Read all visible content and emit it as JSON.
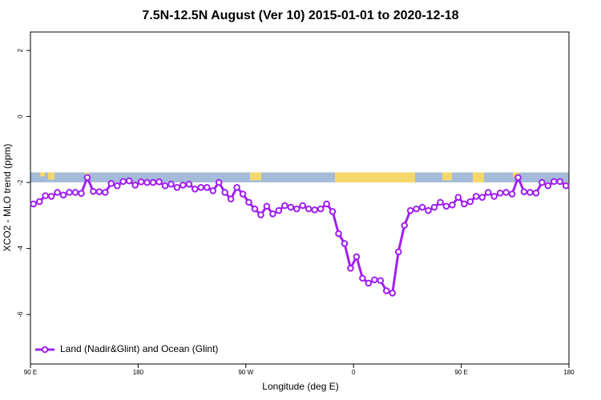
{
  "chart_data": {
    "type": "line",
    "title": "7.5N-12.5N August (Ver 10)   2015-01-01 to 2020-12-18",
    "x_label": "Longitude (deg E)",
    "y_label": "XCO2 - MLO trend (ppm)",
    "x": [
      92.5,
      97.5,
      102.5,
      107.5,
      112.5,
      117.5,
      122.5,
      127.5,
      132.5,
      137.5,
      142.5,
      147.5,
      152.5,
      157.5,
      162.5,
      167.5,
      172.5,
      177.5,
      182.5,
      187.5,
      192.5,
      197.5,
      202.5,
      207.5,
      212.5,
      217.5,
      222.5,
      227.5,
      232.5,
      237.5,
      242.5,
      247.5,
      252.5,
      257.5,
      262.5,
      267.5,
      272.5,
      277.5,
      282.5,
      287.5,
      292.5,
      297.5,
      302.5,
      307.5,
      312.5,
      317.5,
      322.5,
      327.5,
      332.5,
      337.5,
      342.5,
      347.5,
      352.5,
      357.5,
      362.5,
      367.5,
      372.5,
      377.5,
      382.5,
      387.5,
      392.5,
      397.5,
      402.5,
      407.5,
      412.5,
      417.5,
      422.5,
      427.5,
      432.5,
      437.5,
      442.5,
      447.5,
      452.5,
      457.5,
      462.5,
      467.5,
      472.5,
      477.5,
      482.5,
      487.5,
      492.5,
      497.5,
      502.5,
      507.5,
      512.5,
      517.5,
      522.5,
      527.5,
      532.5,
      537.5
    ],
    "series": [
      {
        "name": "Land (Nadir&Glint) and Ocean (Glint)",
        "color": "#a020f0",
        "values": [
          -2.65,
          -2.58,
          -2.4,
          -2.42,
          -2.3,
          -2.38,
          -2.3,
          -2.3,
          -2.33,
          -1.85,
          -2.27,
          -2.28,
          -2.3,
          -2.03,
          -2.1,
          -1.97,
          -1.95,
          -2.08,
          -1.98,
          -2.0,
          -2.0,
          -1.98,
          -2.1,
          -2.05,
          -2.15,
          -2.08,
          -2.05,
          -2.2,
          -2.15,
          -2.15,
          -2.25,
          -2.0,
          -2.3,
          -2.5,
          -2.15,
          -2.35,
          -2.6,
          -2.8,
          -2.98,
          -2.72,
          -2.95,
          -2.85,
          -2.7,
          -2.75,
          -2.8,
          -2.7,
          -2.8,
          -2.83,
          -2.8,
          -2.65,
          -2.88,
          -3.55,
          -3.85,
          -4.6,
          -4.25,
          -4.9,
          -5.05,
          -4.95,
          -4.97,
          -5.28,
          -5.35,
          -4.1,
          -3.3,
          -2.85,
          -2.8,
          -2.75,
          -2.85,
          -2.75,
          -2.6,
          -2.72,
          -2.68,
          -2.45,
          -2.65,
          -2.58,
          -2.42,
          -2.45,
          -2.3,
          -2.42,
          -2.32,
          -2.3,
          -2.35,
          -1.85,
          -2.28,
          -2.3,
          -2.32,
          -2.0,
          -2.1,
          -1.97,
          -1.97,
          -2.1
        ]
      }
    ],
    "xlim": [
      90,
      540
    ],
    "xticks": [
      {
        "value": 90,
        "label": "90 E"
      },
      180,
      {
        "value": 270,
        "label": "90 W"
      },
      {
        "value": 360,
        "label": "0"
      },
      {
        "value": 450,
        "label": "90 E"
      },
      {
        "value": 540,
        "label": "180"
      }
    ],
    "ylim": [
      -7.5,
      2.56
    ],
    "yticks": [
      -6,
      -4,
      -2,
      0,
      2
    ],
    "legend": "bottom-left"
  }
}
